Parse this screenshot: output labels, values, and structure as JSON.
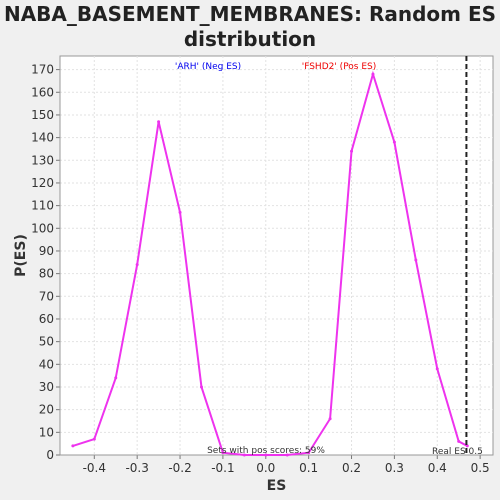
{
  "chart_data": {
    "type": "line",
    "title": "NABA_BASEMENT_MEMBRANES: Random ES distribution",
    "xlabel": "ES",
    "ylabel": "P(ES)",
    "xlim": [
      -0.48,
      0.53
    ],
    "ylim": [
      0,
      176
    ],
    "xticks": [
      "-0.4",
      "-0.3",
      "-0.2",
      "-0.1",
      "0.0",
      "0.1",
      "0.2",
      "0.3",
      "0.4",
      "0.5"
    ],
    "yticks": [
      "0",
      "10",
      "20",
      "30",
      "40",
      "50",
      "60",
      "70",
      "80",
      "90",
      "100",
      "110",
      "120",
      "130",
      "140",
      "150",
      "160",
      "170"
    ],
    "grid": true,
    "series": [
      {
        "color": "#ee33ee",
        "points": [
          [
            -0.45,
            4
          ],
          [
            -0.4,
            7
          ],
          [
            -0.35,
            34
          ],
          [
            -0.3,
            84
          ],
          [
            -0.25,
            147
          ],
          [
            -0.2,
            107
          ],
          [
            -0.15,
            30
          ],
          [
            -0.1,
            1
          ],
          [
            -0.05,
            0
          ],
          [
            0.0,
            0
          ],
          [
            0.05,
            0
          ],
          [
            0.1,
            1
          ],
          [
            0.15,
            16
          ],
          [
            0.2,
            134
          ],
          [
            0.25,
            168
          ],
          [
            0.3,
            138
          ],
          [
            0.35,
            86
          ],
          [
            0.4,
            38
          ],
          [
            0.45,
            6
          ],
          [
            0.47,
            4
          ]
        ]
      }
    ],
    "annotations": {
      "neg_label": "'ARH' (Neg ES)",
      "neg_color": "#0000ee",
      "pos_label": "'FSHD2' (Pos ES)",
      "pos_color": "#ee0000",
      "pos_scores": "Sets with pos scores: 59%",
      "real_es_label": "Real ES 0.5",
      "real_es_value": 0.468
    }
  }
}
